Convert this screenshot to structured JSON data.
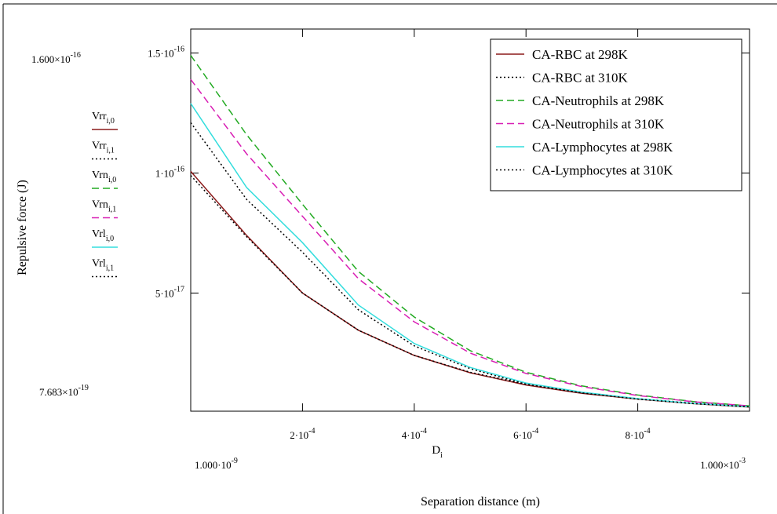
{
  "chart_data": {
    "type": "line",
    "x_label": "Separation distance (m)",
    "y_label": "Repulsive force (J)",
    "x_var": "D",
    "x_var_sub": "i",
    "xlim": [
      1e-09,
      0.001
    ],
    "ylim": [
      7.683e-19,
      1.6e-16
    ],
    "xlim_labels": [
      {
        "label": "1.000·10",
        "exp": "-9"
      },
      {
        "label": "1.000×10",
        "exp": "-3"
      }
    ],
    "ylim_labels": [
      {
        "label": "7.683×10",
        "exp": "-19"
      },
      {
        "label": "1.600×10",
        "exp": "-16"
      }
    ],
    "xticks": [
      {
        "value": 0.0002,
        "label": "2·10",
        "exp": "-4"
      },
      {
        "value": 0.0004,
        "label": "4·10",
        "exp": "-4"
      },
      {
        "value": 0.0006,
        "label": "6·10",
        "exp": "-4"
      },
      {
        "value": 0.0008,
        "label": "8·10",
        "exp": "-4"
      }
    ],
    "yticks": [
      {
        "value": 5e-17,
        "label": "5·10",
        "exp": "-17"
      },
      {
        "value": 1e-16,
        "label": "1·10",
        "exp": "-16"
      },
      {
        "value": 1.5e-16,
        "label": "1.5·10",
        "exp": "-16"
      }
    ],
    "x": [
      1e-09,
      0.0001,
      0.0002,
      0.0003,
      0.0004,
      0.0005,
      0.0006,
      0.0007,
      0.0008,
      0.0009,
      0.001
    ],
    "legend": "upper right",
    "series": [
      {
        "name": "CA-RBC at 298K",
        "trace": "Vrr",
        "trace_sub": "i,0",
        "color": "#8b1a1a",
        "dash": "solid",
        "values": [
          1.007e-16,
          7.4e-17,
          5e-17,
          3.45e-17,
          2.4e-17,
          1.68e-17,
          1.17e-17,
          8.2e-18,
          5.8e-18,
          3.9e-18,
          2.5e-18
        ]
      },
      {
        "name": "CA-RBC at 310K",
        "trace": "Vrr",
        "trace_sub": "i,1",
        "color": "#000000",
        "dash": "dotted",
        "values": [
          9.9e-17,
          7.35e-17,
          5e-17,
          3.45e-17,
          2.4e-17,
          1.7e-17,
          1.2e-17,
          8.4e-18,
          6e-18,
          4.1e-18,
          2.7e-18
        ]
      },
      {
        "name": "CA-Neutrophils at 298K",
        "trace": "Vrn",
        "trace_sub": "i,0",
        "color": "#22aa22",
        "dash": "dashed",
        "values": [
          1.49e-16,
          1.16e-16,
          8.7e-17,
          5.9e-17,
          4e-17,
          2.6e-17,
          1.7e-17,
          1.13e-17,
          7.5e-18,
          4.8e-18,
          3e-18
        ]
      },
      {
        "name": "CA-Neutrophils at 310K",
        "trace": "Vrn",
        "trace_sub": "i,1",
        "color": "#d81eb4",
        "dash": "dashed",
        "values": [
          1.39e-16,
          1.08e-16,
          8.2e-17,
          5.6e-17,
          3.8e-17,
          2.5e-17,
          1.65e-17,
          1.1e-17,
          7.3e-18,
          4.7e-18,
          3e-18
        ]
      },
      {
        "name": "CA-Lymphocytes at 298K",
        "trace": "Vrl",
        "trace_sub": "i,0",
        "color": "#33dddd",
        "dash": "solid",
        "values": [
          1.29e-16,
          9.4e-17,
          7.1e-17,
          4.5e-17,
          2.9e-17,
          1.9e-17,
          1.25e-17,
          8.7e-18,
          6e-18,
          4e-18,
          2.6e-18
        ]
      },
      {
        "name": "CA-Lymphocytes at 310K",
        "trace": "Vrl",
        "trace_sub": "i,1",
        "color": "#000000",
        "dash": "dotted",
        "values": [
          1.21e-16,
          8.9e-17,
          6.7e-17,
          4.3e-17,
          2.8e-17,
          1.85e-17,
          1.2e-17,
          8.4e-18,
          5.8e-18,
          3.9e-18,
          2.6e-18
        ]
      }
    ]
  }
}
